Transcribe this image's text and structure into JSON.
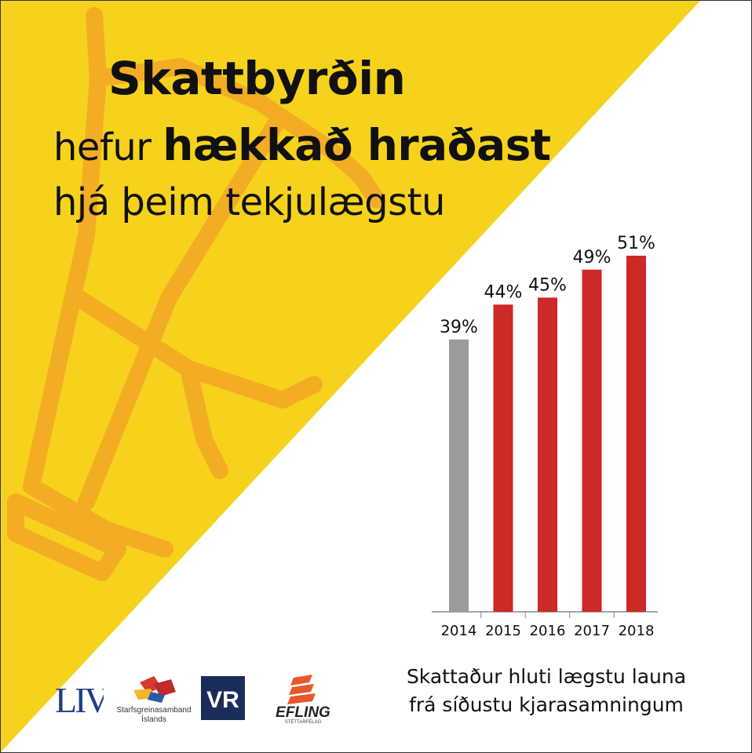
{
  "colors": {
    "yellow": "#f6d21c",
    "decor_orange": "#f3ad25",
    "highlight_bar": "#cc2a27",
    "baseline_bar": "#9b9b9b",
    "axis": "#888888",
    "text": "#111111"
  },
  "headline": {
    "line1": "Skattbyrðin",
    "line2_a": "hefur",
    "line2_b": "hækkað hraðast",
    "line3": "hjá þeim tekjulægstu"
  },
  "chart_data": {
    "type": "bar",
    "categories": [
      "2014",
      "2015",
      "2016",
      "2017",
      "2018"
    ],
    "values": [
      39,
      44,
      45,
      49,
      51
    ],
    "data_labels": [
      "39%",
      "44%",
      "45%",
      "49%",
      "51%"
    ],
    "bar_colors": [
      "#9b9b9b",
      "#cc2a27",
      "#cc2a27",
      "#cc2a27",
      "#cc2a27"
    ],
    "ylim": [
      0,
      51
    ],
    "grid": false,
    "legend": "none",
    "title": "",
    "xlabel": "",
    "ylabel": ""
  },
  "caption": {
    "line1": "Skattaður hluti lægstu launa",
    "line2": "frá síðustu kjarasamningum"
  },
  "logos": [
    {
      "name": "liv-logo",
      "text": "LIV"
    },
    {
      "name": "sgs-logo",
      "text_1": "Starfsgreinasamband",
      "text_2": "Íslands"
    },
    {
      "name": "vr-logo",
      "text": "VR"
    },
    {
      "name": "efling-logo",
      "text": "EFLING",
      "subtext": "STÉTTARFÉLAG"
    }
  ]
}
